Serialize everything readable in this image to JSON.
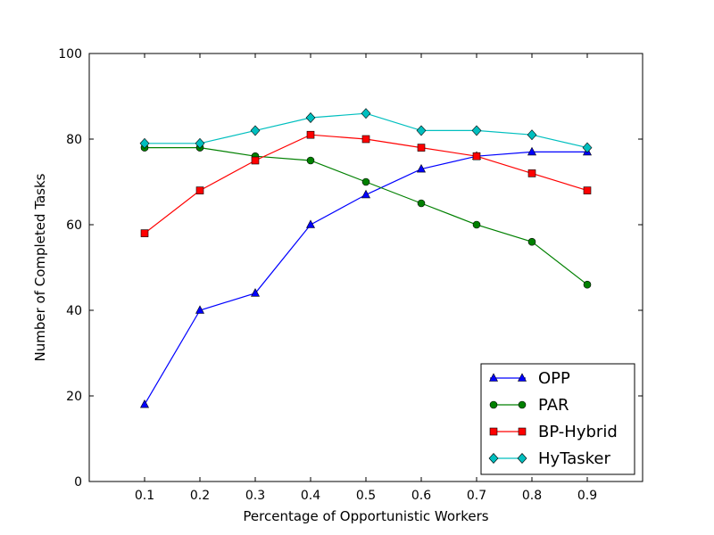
{
  "chart_data": {
    "type": "line",
    "title": "",
    "xlabel": "Percentage of Opportunistic Workers",
    "ylabel": "Number of Completed Tasks",
    "xlim": [
      0,
      1.0
    ],
    "ylim": [
      0,
      100
    ],
    "x": [
      0.1,
      0.2,
      0.3,
      0.4,
      0.5,
      0.6,
      0.7,
      0.8,
      0.9
    ],
    "x_tick_labels": [
      "0.1",
      "0.2",
      "0.3",
      "0.4",
      "0.5",
      "0.6",
      "0.7",
      "0.8",
      "0.9"
    ],
    "y_ticks": [
      0,
      20,
      40,
      60,
      80,
      100
    ],
    "y_tick_labels": [
      "0",
      "20",
      "40",
      "60",
      "80",
      "100"
    ],
    "grid": false,
    "legend_position": "bottom-right",
    "series": [
      {
        "name": "OPP",
        "color": "#0000ff",
        "marker": "triangle",
        "values": [
          18,
          40,
          44,
          60,
          67,
          73,
          76,
          77,
          77
        ]
      },
      {
        "name": "PAR",
        "color": "#008000",
        "marker": "circle",
        "values": [
          78,
          78,
          76,
          75,
          70,
          65,
          60,
          56,
          46
        ]
      },
      {
        "name": "BP-Hybrid",
        "color": "#ff0000",
        "marker": "square",
        "values": [
          58,
          68,
          75,
          81,
          80,
          78,
          76,
          72,
          68
        ]
      },
      {
        "name": "HyTasker",
        "color": "#00bfbf",
        "marker": "diamond",
        "values": [
          79,
          79,
          82,
          85,
          86,
          82,
          82,
          81,
          78
        ]
      }
    ]
  }
}
